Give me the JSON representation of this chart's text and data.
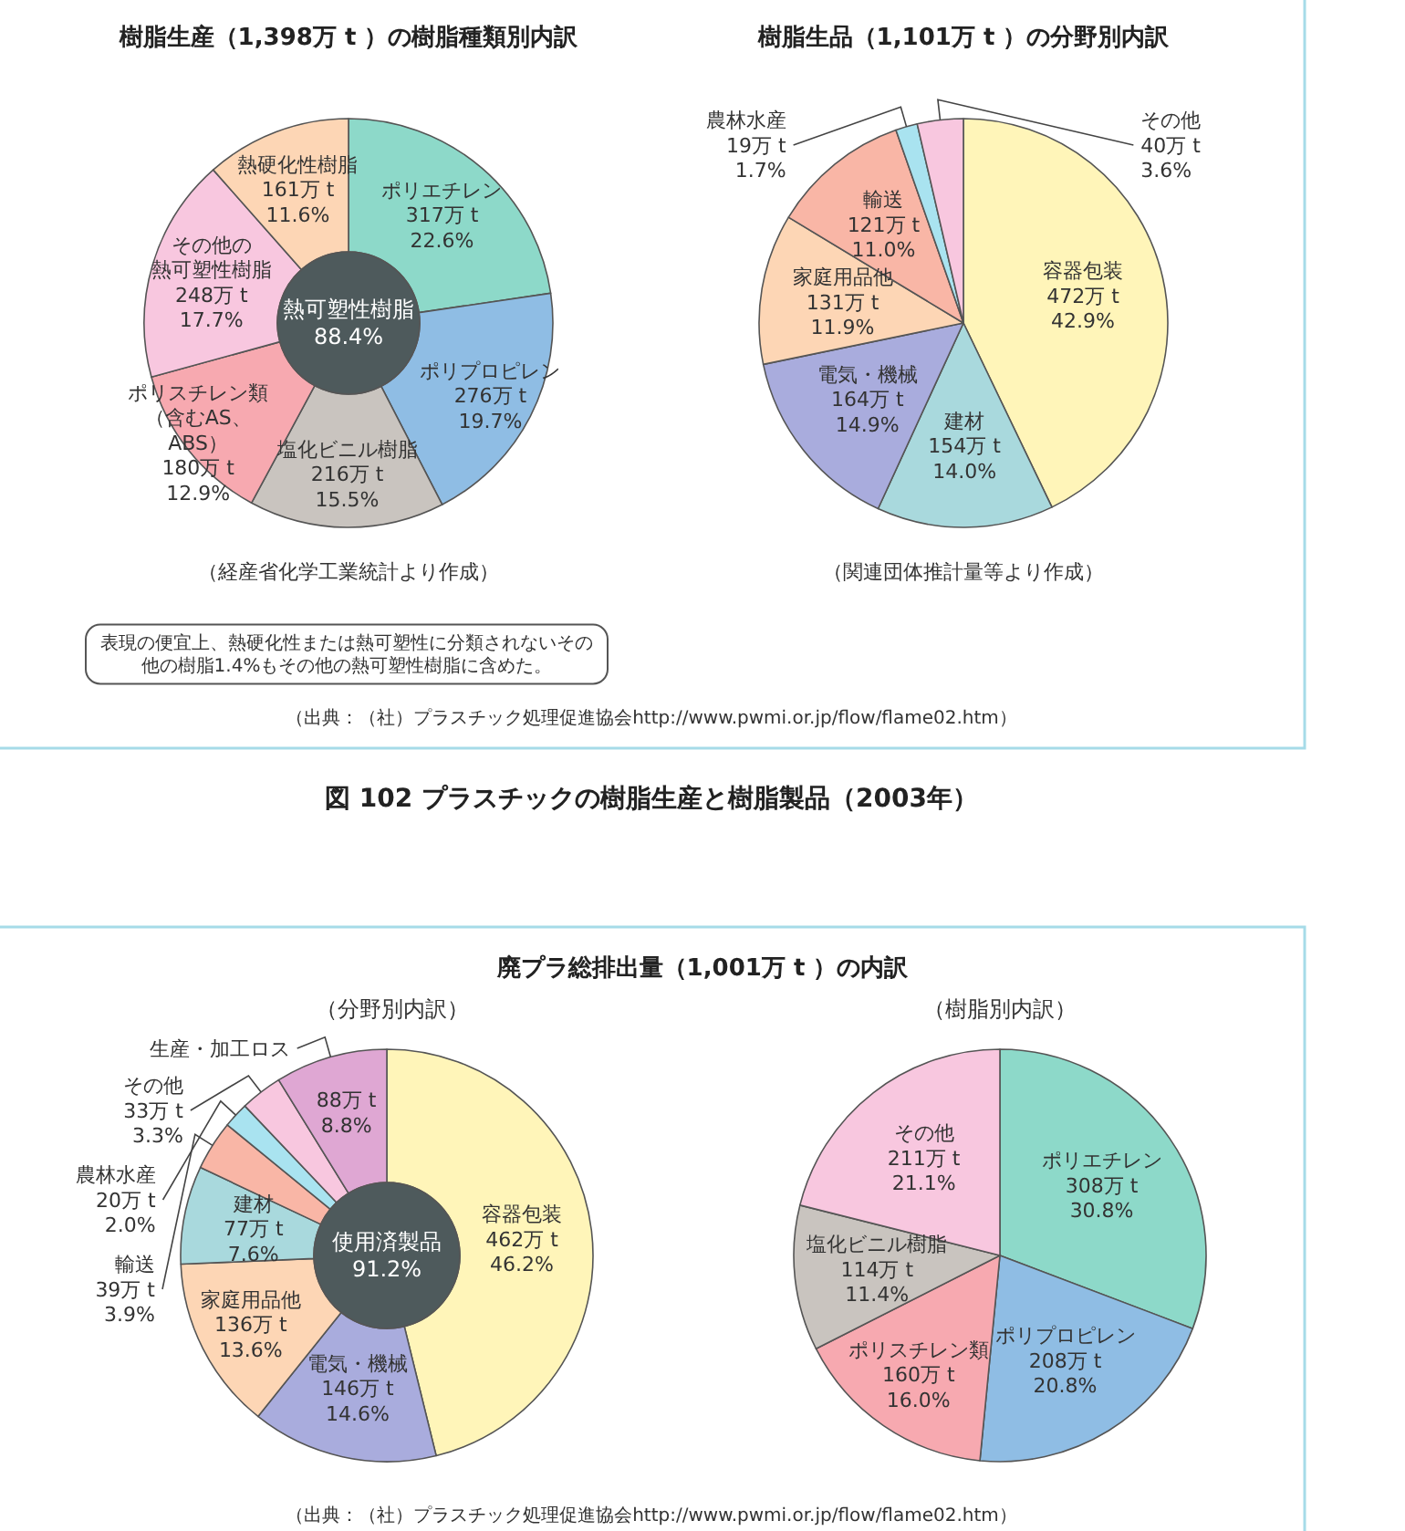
{
  "chart_data": [
    {
      "type": "donut",
      "title": "樹脂生産（1,398万 t ）の樹脂種類別内訳",
      "categories": [
        "ポリエチレン",
        "ポリプロピレン",
        "塩化ビニル樹脂",
        "ポリスチレン類（含むAS、ABS）",
        "その他の熱可塑性樹脂",
        "熱硬化性樹脂"
      ],
      "values": [
        317,
        276,
        216,
        180,
        248,
        161
      ],
      "value_labels": [
        "317万 t\n22.6%",
        "276万 t\n19.7%",
        "216万 t\n15.5%",
        "180万 t\n12.9%",
        "248万 t\n17.7%",
        "161万 t\n11.6%"
      ],
      "colors": [
        "#8dd9c9",
        "#8fbde4",
        "#c9c4bf",
        "#f7a9b0",
        "#f8c7df",
        "#fdd6b5"
      ],
      "annotations": [
        "熱可塑性樹脂\n88.4%",
        "（経産省化学工業統計より作成）",
        "表現の便宜上、熱硬化性または熱可塑性に分類されないその他の樹脂1.4%もその他の熱可塑性樹脂に含めた。",
        "（出典：（社）プラスチック処理促進協会http://www.pwmi.or.jp/flow/flame02.htm）",
        "図 102 プラスチックの樹脂生産と樹脂製品（2003年）"
      ]
    },
    {
      "type": "pie",
      "title": "樹脂生品（1,101万 t ）の分野別内訳",
      "categories": [
        "容器包装",
        "建材",
        "電気・機械",
        "家庭用品他",
        "輸送",
        "農林水産",
        "その他"
      ],
      "values": [
        472,
        154,
        164,
        131,
        121,
        19,
        40
      ],
      "value_labels": [
        "472万 t\n42.9%",
        "154万 t\n14.0%",
        "164万 t\n14.9%",
        "131万 t\n11.9%",
        "121万 t\n11.0%",
        "19万 t\n1.7%",
        "40万 t\n3.6%"
      ],
      "colors": [
        "#fff5b9",
        "#a9d9dd",
        "#a9acdd",
        "#fdd6b5",
        "#f9b6a6",
        "#a9e3f0",
        "#f8c7df"
      ],
      "annotations": [
        "（関連団体推計量等より作成）"
      ]
    },
    {
      "type": "donut",
      "title": "廃プラ総排出量（1,001万 t ）の内訳",
      "subtitle": "（分野別内訳）",
      "categories": [
        "容器包装",
        "電気・機械",
        "家庭用品他",
        "建材",
        "輸送",
        "農林水産",
        "その他",
        "生産・加工ロス"
      ],
      "values": [
        462,
        146,
        136,
        77,
        39,
        20,
        33,
        88
      ],
      "value_labels": [
        "462万 t\n46.2%",
        "146万 t\n14.6%",
        "136万 t\n13.6%",
        "77万 t\n7.6%",
        "39万 t\n3.9%",
        "20万 t\n2.0%",
        "33万 t\n3.3%",
        "88万 t\n8.8%"
      ],
      "colors": [
        "#fff5b9",
        "#a9acdd",
        "#fdd6b5",
        "#a9d9dd",
        "#f9b6a6",
        "#a9e3f0",
        "#f8c7df",
        "#dfa7d3"
      ],
      "annotations": [
        "使用済製品\n91.2%",
        "（出典：（社）プラスチック処理促進協会http://www.pwmi.or.jp/flow/flame02.htm）"
      ]
    },
    {
      "type": "pie",
      "subtitle": "（樹脂別内訳）",
      "categories": [
        "ポリエチレン",
        "ポリプロピレン",
        "ポリスチレン類",
        "塩化ビニル樹脂",
        "その他"
      ],
      "values": [
        308,
        208,
        160,
        114,
        211
      ],
      "value_labels": [
        "308万 t\n30.8%",
        "208万 t\n20.8%",
        "160万 t\n16.0%",
        "114万 t\n11.4%",
        "211万 t\n21.1%"
      ],
      "colors": [
        "#8dd9c9",
        "#8fbde4",
        "#f7a9b0",
        "#c9c4bf",
        "#f8c7df"
      ]
    }
  ]
}
